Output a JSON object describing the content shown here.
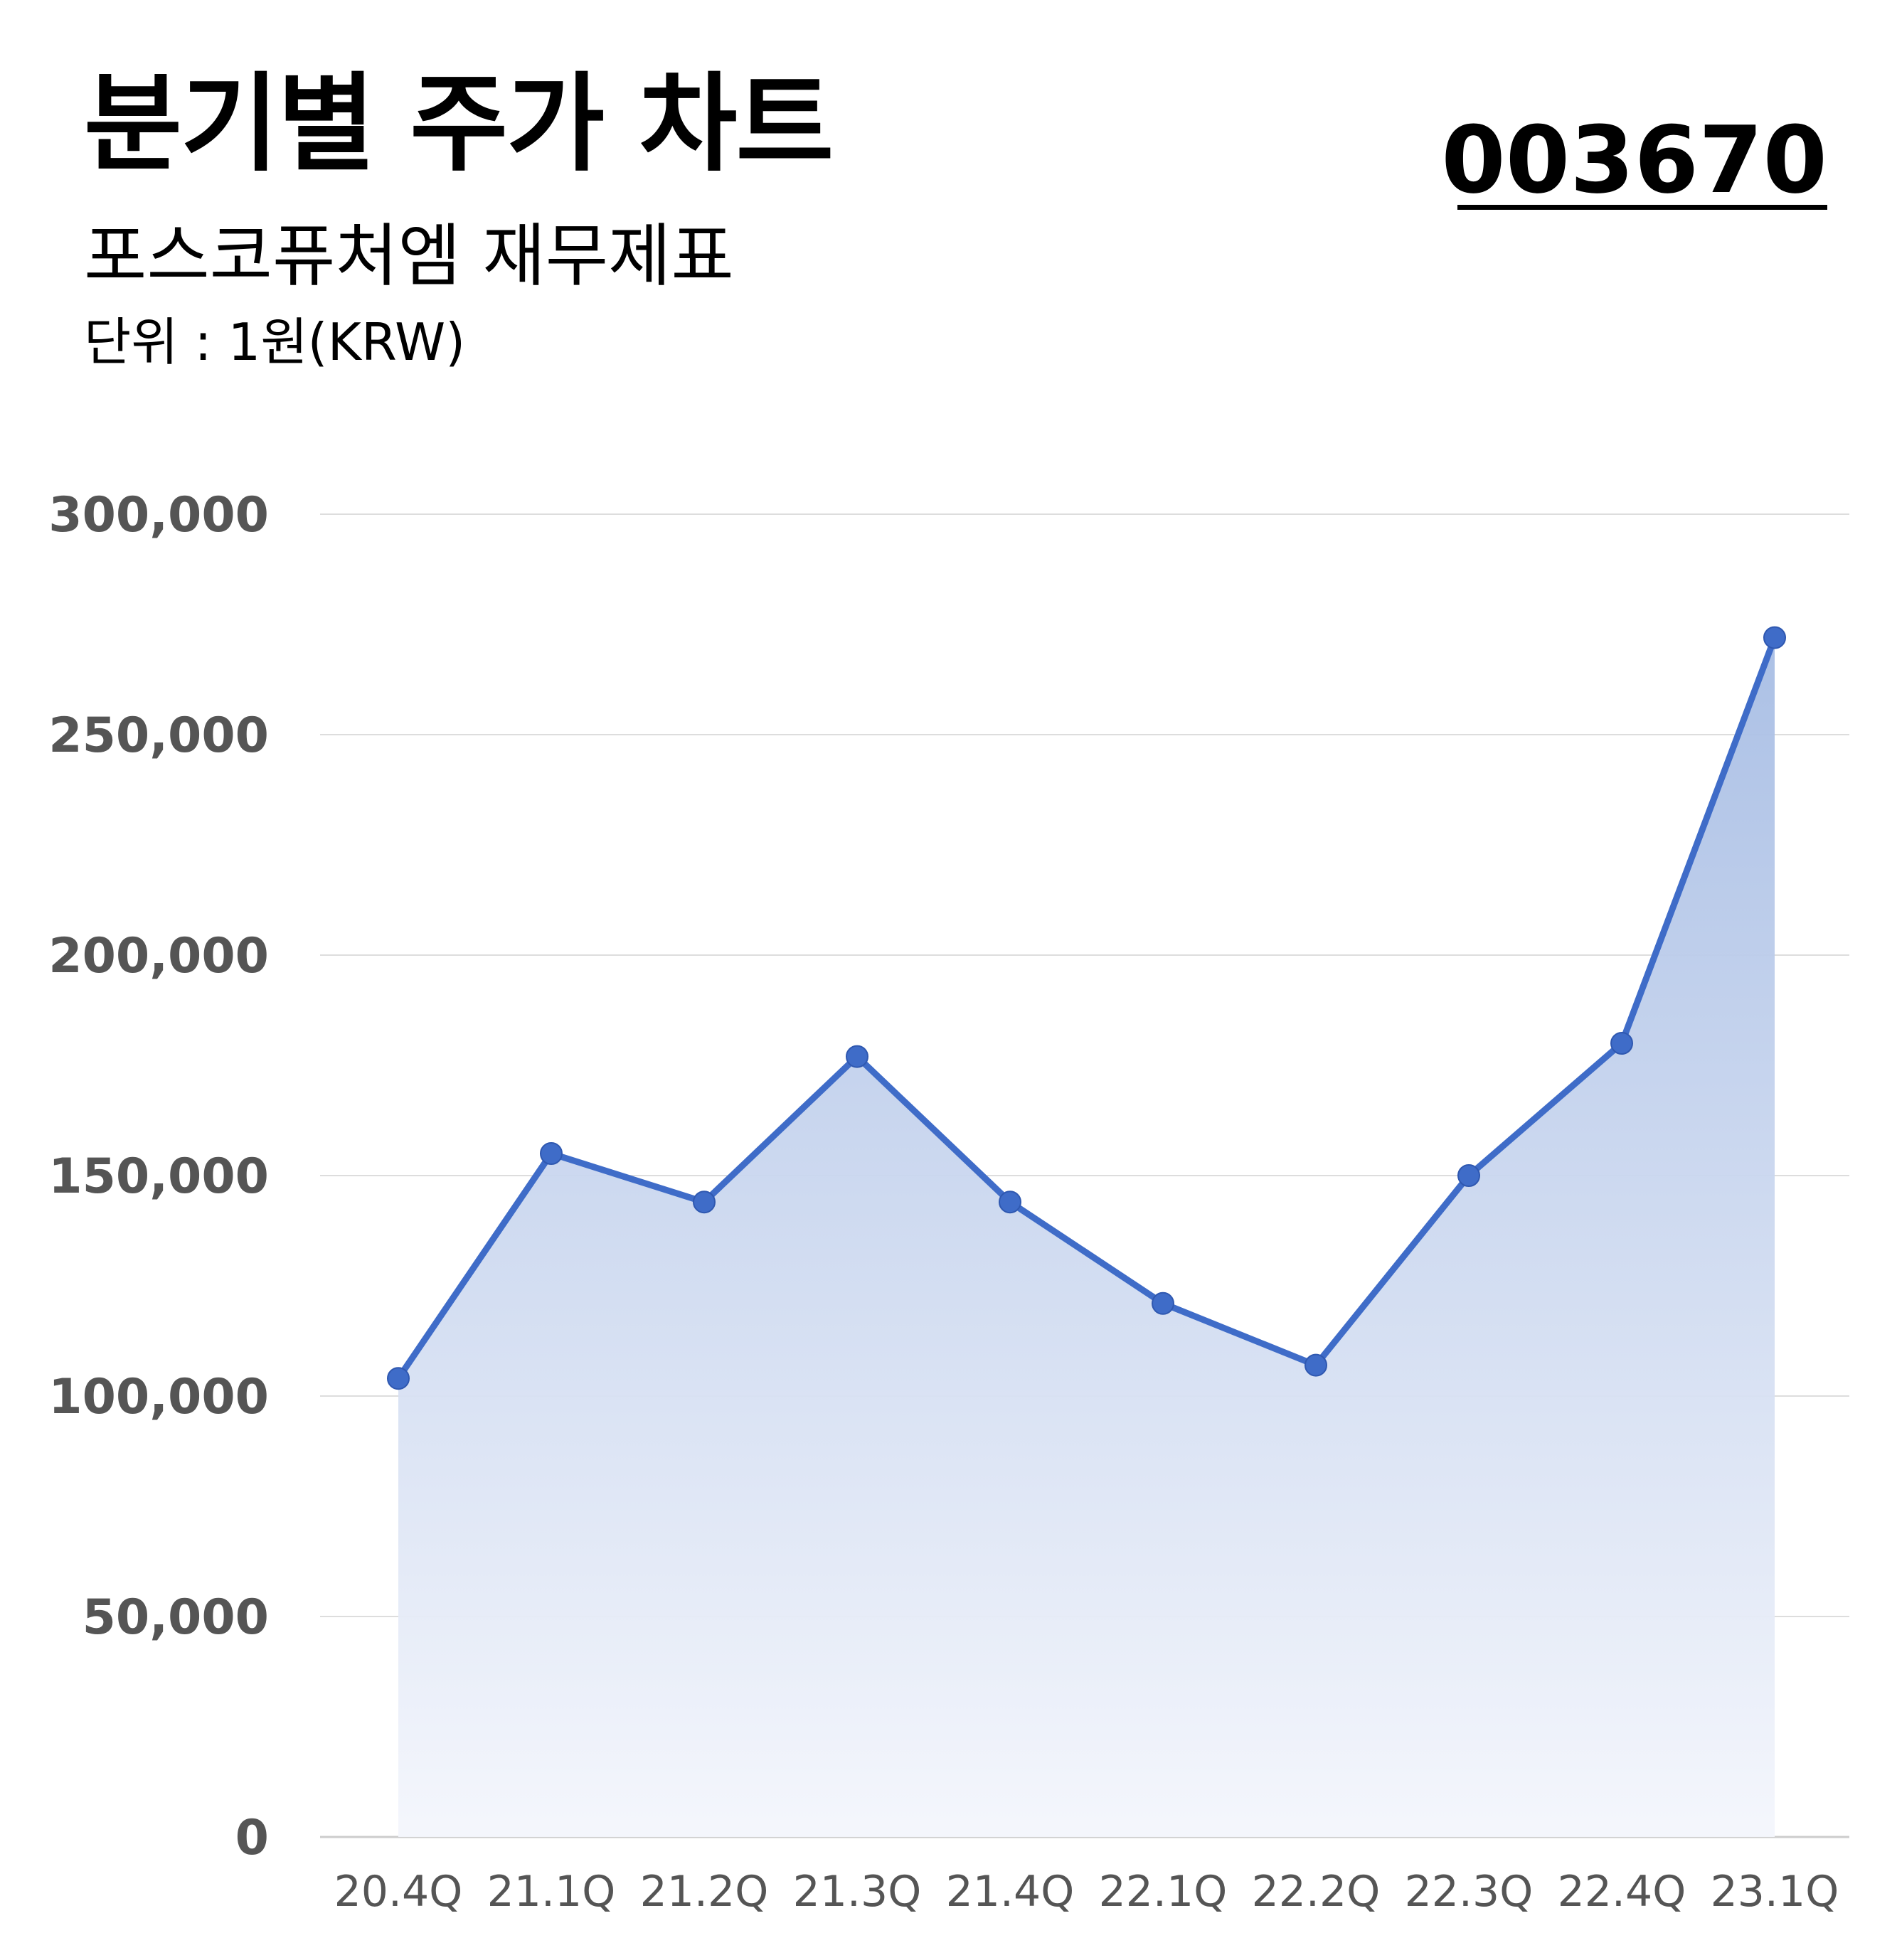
{
  "header": {
    "title": "분기별 주가 차트",
    "subtitle": "포스코퓨처엠 재무제표",
    "unit": "단위 : 1원(KRW)",
    "code": "003670"
  },
  "chart_data": {
    "type": "area",
    "title": "분기별 주가 차트",
    "categories": [
      "20.4Q",
      "21.1Q",
      "21.2Q",
      "21.3Q",
      "21.4Q",
      "22.1Q",
      "22.2Q",
      "22.3Q",
      "22.4Q",
      "23.1Q"
    ],
    "series": [
      {
        "values": [
          104000,
          155000,
          144000,
          177000,
          144000,
          121000,
          107000,
          150000,
          180000,
          272000
        ]
      }
    ],
    "ylim": [
      0,
      300000
    ],
    "yticks": [
      "0",
      "50,000",
      "100,000",
      "150,000",
      "200,000",
      "250,000",
      "300,000"
    ],
    "ytick_values": [
      0,
      50000,
      100000,
      150000,
      200000,
      250000,
      300000
    ],
    "grid": true,
    "colors": {
      "line": "#3F6CC8",
      "fill_top": "#A7BDE4",
      "fill_bottom": "#F4F6FC",
      "grid": "#DDDDDD",
      "axis": "#CCCCCC",
      "tick_text": "#555555"
    }
  }
}
